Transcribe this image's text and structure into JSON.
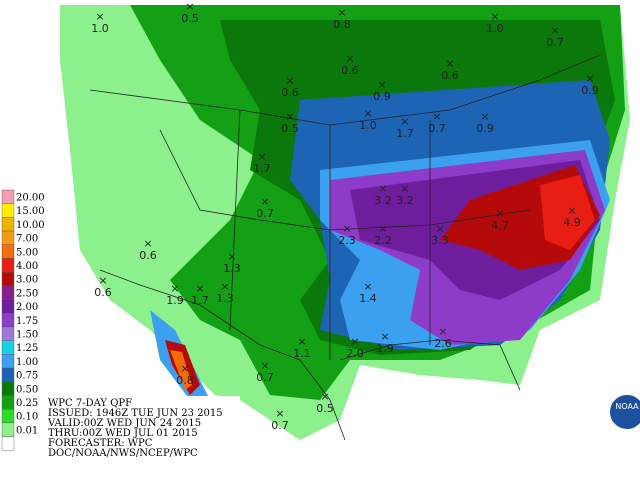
{
  "legend": [
    {
      "label": "20.00",
      "color": "#f4a0b4"
    },
    {
      "label": "15.00",
      "color": "#ffee00"
    },
    {
      "label": "10.00",
      "color": "#f0b400"
    },
    {
      "label": "7.00",
      "color": "#f59a14"
    },
    {
      "label": "5.00",
      "color": "#f56a0a"
    },
    {
      "label": "4.00",
      "color": "#e81e14"
    },
    {
      "label": "3.00",
      "color": "#b40a0a"
    },
    {
      "label": "2.50",
      "color": "#8c1e8c"
    },
    {
      "label": "2.00",
      "color": "#6e1e9c"
    },
    {
      "label": "1.75",
      "color": "#8c3cc8"
    },
    {
      "label": "1.50",
      "color": "#a078dc"
    },
    {
      "label": "1.25",
      "color": "#14d2e6"
    },
    {
      "label": "1.00",
      "color": "#3ca0f0"
    },
    {
      "label": "0.75",
      "color": "#1e64b4"
    },
    {
      "label": "0.50",
      "color": "#0a780a"
    },
    {
      "label": "0.25",
      "color": "#14a014"
    },
    {
      "label": "0.10",
      "color": "#28dc28"
    },
    {
      "label": "0.01",
      "color": "#8cf08c"
    }
  ],
  "info": [
    "WPC 7-DAY QPF",
    "ISSUED: 1946Z TUE JUN 23 2015",
    "VALID:00Z WED JUN 24 2015",
    "THRU:00Z WED JUL 01 2015",
    "FORECASTER: WPC",
    "DOC/NOAA/NWS/NCEP/WPC"
  ],
  "logo": "NOAA",
  "points": [
    "1.0",
    "0.5",
    "0.8",
    "1.0",
    "0.7",
    "0.6",
    "0.6",
    "0.9",
    "0.6",
    "0.9",
    "0.5",
    "1.0",
    "1.7",
    "0.7",
    "0.9",
    "1.7",
    "3.2",
    "3.2",
    "4.9",
    "4.7",
    "0.7",
    "0.6",
    "2.3",
    "2.2",
    "3.3",
    "1.3",
    "0.6",
    "1.9",
    "1.7",
    "1.3",
    "1.4",
    "1.1",
    "2.0",
    "1.9",
    "2.6",
    "0.7",
    "0.8",
    "0.5",
    "0.7"
  ]
}
